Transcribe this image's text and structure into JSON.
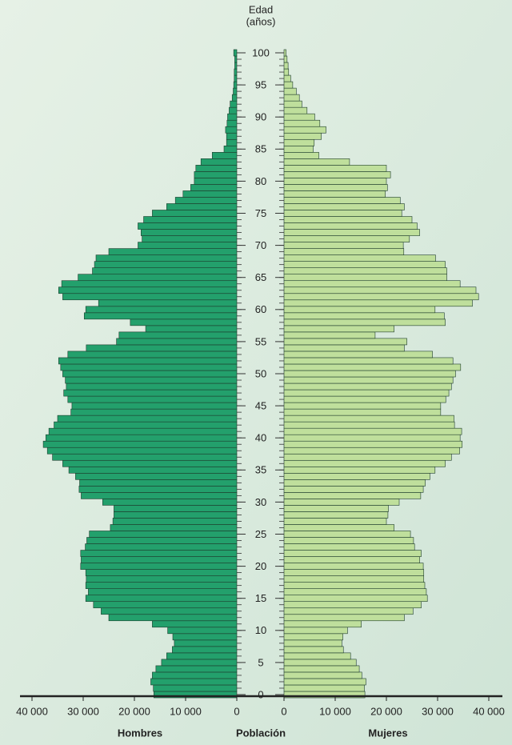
{
  "chart_data": {
    "type": "pyramid",
    "y_label": [
      "Edad",
      "(años)"
    ],
    "x_label": "Población",
    "y": [
      0,
      1,
      2,
      3,
      4,
      5,
      6,
      7,
      8,
      9,
      10,
      11,
      12,
      13,
      14,
      15,
      16,
      17,
      18,
      19,
      20,
      21,
      22,
      23,
      24,
      25,
      26,
      27,
      28,
      29,
      30,
      31,
      32,
      33,
      34,
      35,
      36,
      37,
      38,
      39,
      40,
      41,
      42,
      43,
      44,
      45,
      46,
      47,
      48,
      49,
      50,
      51,
      52,
      53,
      54,
      55,
      56,
      57,
      58,
      59,
      60,
      61,
      62,
      63,
      64,
      65,
      66,
      67,
      68,
      69,
      70,
      71,
      72,
      73,
      74,
      75,
      76,
      77,
      78,
      79,
      80,
      81,
      82,
      83,
      84,
      85,
      86,
      87,
      88,
      89,
      90,
      91,
      92,
      93,
      94,
      95,
      96,
      97,
      98,
      99,
      100
    ],
    "ylim": [
      0,
      100
    ],
    "yticks": [
      0,
      5,
      10,
      15,
      20,
      25,
      30,
      35,
      40,
      45,
      50,
      55,
      60,
      65,
      70,
      75,
      80,
      85,
      90,
      95,
      100
    ],
    "xlim": [
      0,
      40000
    ],
    "xticks": [
      0,
      {
        "value": 10000,
        "label": "10 000"
      },
      {
        "value": 20000,
        "label": "20 000"
      },
      {
        "value": 30000,
        "label": "30 000"
      },
      {
        "value": 40000,
        "label": "40 000"
      }
    ],
    "series": [
      {
        "name": "Hombres",
        "side": "left",
        "color": "#23a06c",
        "values": [
          16200,
          16300,
          16800,
          16500,
          15800,
          14700,
          13700,
          12600,
          12200,
          12500,
          13500,
          16500,
          25000,
          26500,
          28000,
          29500,
          29000,
          29500,
          29400,
          29500,
          30500,
          30400,
          30500,
          29600,
          29300,
          28800,
          24700,
          24200,
          24000,
          24000,
          26200,
          30400,
          30800,
          30700,
          31500,
          32800,
          34000,
          36000,
          37000,
          37800,
          37300,
          36700,
          35700,
          35000,
          32400,
          32200,
          33000,
          33800,
          33300,
          33500,
          34000,
          34400,
          34800,
          33000,
          29400,
          23500,
          23000,
          17800,
          20800,
          29800,
          29500,
          27000,
          34000,
          34800,
          34200,
          31000,
          28200,
          27800,
          27500,
          25000,
          19300,
          18500,
          18700,
          19300,
          18200,
          16500,
          13700,
          12000,
          10500,
          9000,
          8300,
          8300,
          8000,
          7000,
          4800,
          2500,
          2000,
          2000,
          2200,
          1900,
          1800,
          1500,
          1300,
          900,
          700,
          600,
          500,
          500,
          400,
          400,
          600
        ]
      },
      {
        "name": "Mujeres",
        "side": "right",
        "color": "#bfdf9c",
        "values": [
          15800,
          15700,
          16000,
          15200,
          14700,
          14100,
          13000,
          11600,
          11300,
          11500,
          12400,
          15100,
          23500,
          25200,
          26800,
          28000,
          27800,
          27500,
          27300,
          27300,
          27200,
          26500,
          26800,
          25500,
          25300,
          24700,
          21500,
          20000,
          20300,
          20400,
          22500,
          26700,
          27200,
          27600,
          28500,
          29500,
          31500,
          32700,
          34300,
          34800,
          34400,
          34700,
          33300,
          33200,
          30600,
          30600,
          31600,
          32200,
          32700,
          33000,
          33500,
          34500,
          33000,
          29000,
          23500,
          24000,
          17800,
          21500,
          31500,
          31300,
          29500,
          36800,
          38000,
          37500,
          34400,
          31800,
          31800,
          31500,
          29600,
          23400,
          23300,
          24500,
          26500,
          26000,
          25000,
          23000,
          23500,
          22700,
          19800,
          20200,
          20000,
          20800,
          20000,
          12800,
          6800,
          5700,
          5900,
          7300,
          8200,
          7000,
          6000,
          4500,
          3500,
          3000,
          2400,
          1700,
          1300,
          900,
          800,
          600,
          400
        ]
      }
    ]
  }
}
